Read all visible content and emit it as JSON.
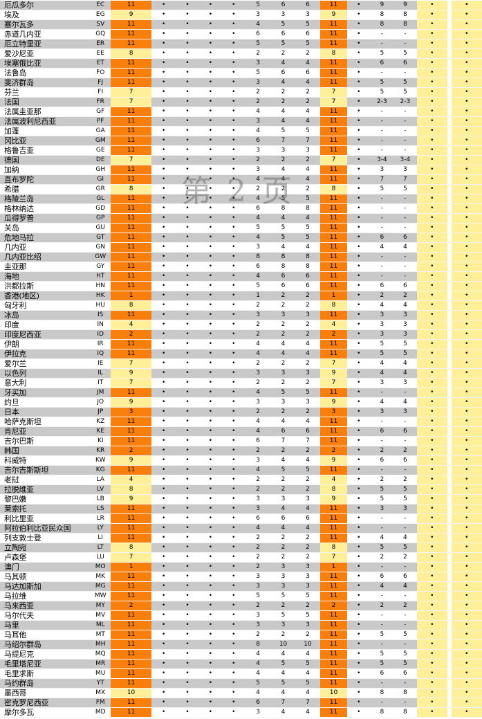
{
  "watermark": "第 2 页",
  "colors": {
    "row_gray": "#c9c9c9",
    "row_white": "#ffffff",
    "highlight_yellow": "#ffef99",
    "highlight_orange": "#f97f0d"
  },
  "marks": {
    "bullet": "•",
    "dash": "-"
  },
  "rows": [
    [
      "厄瓜多尔",
      "EC",
      "11",
      "•",
      "•",
      "•",
      "•",
      "5",
      "6",
      "6",
      "11",
      "•",
      "9",
      "9",
      "•",
      "•"
    ],
    [
      "埃及",
      "EG",
      "9",
      "•",
      "•",
      "•",
      "•",
      "3",
      "3",
      "3",
      "9",
      "•",
      "8",
      "8",
      "•",
      "•"
    ],
    [
      "塞尔瓦多",
      "SV",
      "11",
      "•",
      "•",
      "•",
      "•",
      "4",
      "5",
      "5",
      "11",
      "•",
      "8",
      "8",
      "•",
      "•"
    ],
    [
      "赤道几内亚",
      "GQ",
      "11",
      "•",
      "•",
      "•",
      "•",
      "6",
      "6",
      "6",
      "11",
      "•",
      "-",
      "-",
      "•",
      "•"
    ],
    [
      "厄立特里亚",
      "ER",
      "11",
      "•",
      "•",
      "•",
      "•",
      "5",
      "5",
      "5",
      "11",
      "•",
      "-",
      "-",
      "•",
      "•"
    ],
    [
      "爱沙尼亚",
      "EE",
      "8",
      "•",
      "•",
      "•",
      "•",
      "2",
      "2",
      "2",
      "8",
      "•",
      "5",
      "5",
      "•",
      "•"
    ],
    [
      "埃塞俄比亚",
      "ET",
      "11",
      "•",
      "•",
      "•",
      "•",
      "3",
      "4",
      "4",
      "11",
      "•",
      "6",
      "6",
      "•",
      "•"
    ],
    [
      "法鲁岛",
      "FO",
      "11",
      "•",
      "•",
      "•",
      "•",
      "5",
      "6",
      "6",
      "11",
      "•",
      "-",
      "-",
      "•",
      "•"
    ],
    [
      "斐济群岛",
      "FJ",
      "11",
      "•",
      "•",
      "•",
      "•",
      "3",
      "4",
      "4",
      "11",
      "•",
      "5",
      "5",
      "•",
      "•"
    ],
    [
      "芬兰",
      "FI",
      "7",
      "•",
      "•",
      "•",
      "•",
      "2",
      "2",
      "2",
      "7",
      "•",
      "5",
      "5",
      "•",
      "•"
    ],
    [
      "法国",
      "FR",
      "7",
      "•",
      "•",
      "•",
      "•",
      "2",
      "2",
      "2",
      "7",
      "•",
      "2-3",
      "2-3",
      "•",
      "•"
    ],
    [
      "法属圭亚那",
      "GF",
      "11",
      "•",
      "•",
      "•",
      "•",
      "4",
      "4",
      "4",
      "11",
      "•",
      "-",
      "-",
      "•",
      "•"
    ],
    [
      "法属波利尼西亚",
      "PF",
      "11",
      "•",
      "•",
      "•",
      "•",
      "3",
      "4",
      "4",
      "11",
      "•",
      "-",
      "-",
      "•",
      "•"
    ],
    [
      "加蓬",
      "GA",
      "11",
      "•",
      "•",
      "•",
      "•",
      "4",
      "5",
      "5",
      "11",
      "•",
      "-",
      "-",
      "•",
      "•"
    ],
    [
      "冈比亚",
      "GM",
      "11",
      "•",
      "•",
      "•",
      "•",
      "6",
      "7",
      "7",
      "11",
      "•",
      "-",
      "-",
      "•",
      "•"
    ],
    [
      "格鲁吉亚",
      "GE",
      "11",
      "•",
      "•",
      "•",
      "•",
      "3",
      "3",
      "3",
      "11",
      "•",
      "-",
      "-",
      "•",
      "•"
    ],
    [
      "德国",
      "DE",
      "7",
      "•",
      "•",
      "•",
      "•",
      "2",
      "2",
      "2",
      "7",
      "•",
      "3-4",
      "3-4",
      "•",
      "•"
    ],
    [
      "加纳",
      "GH",
      "11",
      "•",
      "•",
      "•",
      "•",
      "3",
      "4",
      "4",
      "11",
      "•",
      "3",
      "3",
      "•",
      "•"
    ],
    [
      "直布罗陀",
      "GI",
      "11",
      "•",
      "•",
      "•",
      "•",
      "4",
      "4",
      "4",
      "11",
      "•",
      "7",
      "7",
      "•",
      "•"
    ],
    [
      "希腊",
      "GR",
      "8",
      "•",
      "•",
      "•",
      "•",
      "2",
      "2",
      "2",
      "8",
      "•",
      "5",
      "5",
      "•",
      "•"
    ],
    [
      "格陵兰岛",
      "GL",
      "11",
      "•",
      "•",
      "•",
      "•",
      "4",
      "5",
      "5",
      "11",
      "•",
      "-",
      "-",
      "•",
      "•"
    ],
    [
      "格林纳达",
      "GD",
      "11",
      "•",
      "•",
      "•",
      "•",
      "6",
      "8",
      "8",
      "11",
      "•",
      "-",
      "-",
      "•",
      "•"
    ],
    [
      "瓜得罗普",
      "GP",
      "11",
      "•",
      "•",
      "•",
      "•",
      "4",
      "4",
      "4",
      "11",
      "•",
      "-",
      "-",
      "•",
      "•"
    ],
    [
      "关岛",
      "GU",
      "11",
      "•",
      "•",
      "•",
      "•",
      "5",
      "5",
      "5",
      "11",
      "•",
      "-",
      "-",
      "•",
      "•"
    ],
    [
      "危地马拉",
      "GT",
      "11",
      "•",
      "•",
      "•",
      "•",
      "4",
      "5",
      "5",
      "11",
      "•",
      "6",
      "6",
      "•",
      "•"
    ],
    [
      "几内亚",
      "GN",
      "11",
      "•",
      "•",
      "•",
      "•",
      "3",
      "4",
      "4",
      "11",
      "•",
      "4",
      "4",
      "•",
      "•"
    ],
    [
      "几内亚比绍",
      "GW",
      "11",
      "•",
      "•",
      "•",
      "•",
      "8",
      "8",
      "8",
      "11",
      "•",
      "-",
      "-",
      "•",
      "•"
    ],
    [
      "圭亚那",
      "GY",
      "11",
      "•",
      "•",
      "•",
      "•",
      "6",
      "8",
      "8",
      "11",
      "•",
      "-",
      "-",
      "•",
      "•"
    ],
    [
      "海地",
      "HT",
      "11",
      "•",
      "•",
      "•",
      "•",
      "4",
      "6",
      "6",
      "11",
      "•",
      "-",
      "-",
      "•",
      "•"
    ],
    [
      "洪都拉斯",
      "HN",
      "11",
      "•",
      "•",
      "•",
      "•",
      "5",
      "6",
      "6",
      "11",
      "•",
      "6",
      "6",
      "•",
      "•"
    ],
    [
      "香港(地区)",
      "HK",
      "1",
      "•",
      "•",
      "•",
      "•",
      "1",
      "2",
      "2",
      "1",
      "•",
      "2",
      "2",
      "•",
      "•"
    ],
    [
      "匈牙利",
      "HU",
      "8",
      "•",
      "•",
      "•",
      "•",
      "2",
      "2",
      "2",
      "8",
      "•",
      "4",
      "4",
      "•",
      "•"
    ],
    [
      "冰岛",
      "IS",
      "11",
      "•",
      "•",
      "•",
      "•",
      "3",
      "3",
      "3",
      "11",
      "•",
      "3",
      "3",
      "•",
      "•"
    ],
    [
      "印度",
      "IN",
      "4",
      "•",
      "•",
      "•",
      "•",
      "2",
      "2",
      "2",
      "4",
      "•",
      "3",
      "3",
      "•",
      "•"
    ],
    [
      "印度尼西亚",
      "ID",
      "2",
      "•",
      "•",
      "•",
      "•",
      "2",
      "2",
      "2",
      "2",
      "•",
      "3",
      "3",
      "•",
      "•"
    ],
    [
      "伊朗",
      "IR",
      "11",
      "•",
      "•",
      "•",
      "•",
      "4",
      "4",
      "4",
      "11",
      "•",
      "5",
      "5",
      "•",
      "•"
    ],
    [
      "伊拉克",
      "IQ",
      "11",
      "•",
      "•",
      "•",
      "•",
      "4",
      "4",
      "4",
      "11",
      "•",
      "5",
      "5",
      "•",
      "•"
    ],
    [
      "爱尔兰",
      "IE",
      "7",
      "•",
      "•",
      "•",
      "•",
      "2",
      "2",
      "2",
      "7",
      "•",
      "4",
      "4",
      "•",
      "•"
    ],
    [
      "以色列",
      "IL",
      "9",
      "•",
      "•",
      "•",
      "•",
      "3",
      "3",
      "3",
      "9",
      "•",
      "4",
      "4",
      "•",
      "•"
    ],
    [
      "意大利",
      "IT",
      "7",
      "•",
      "•",
      "•",
      "•",
      "2",
      "2",
      "2",
      "7",
      "•",
      "3",
      "3",
      "•",
      "•"
    ],
    [
      "牙买加",
      "JM",
      "11",
      "•",
      "•",
      "•",
      "•",
      "4",
      "5",
      "5",
      "11",
      "•",
      "-",
      "-",
      "•",
      "•"
    ],
    [
      "约旦",
      "JO",
      "9",
      "•",
      "•",
      "•",
      "•",
      "3",
      "3",
      "3",
      "9",
      "•",
      "4",
      "4",
      "•",
      "•"
    ],
    [
      "日本",
      "JP",
      "3",
      "•",
      "•",
      "•",
      "•",
      "2",
      "2",
      "2",
      "3",
      "•",
      "3",
      "3",
      "•",
      "•"
    ],
    [
      "哈萨克斯坦",
      "KZ",
      "11",
      "•",
      "•",
      "•",
      "•",
      "4",
      "4",
      "4",
      "11",
      "•",
      "-",
      "-",
      "•",
      "•"
    ],
    [
      "肯尼亚",
      "KE",
      "11",
      "•",
      "•",
      "•",
      "•",
      "4",
      "6",
      "6",
      "11",
      "•",
      "6",
      "6",
      "•",
      "•"
    ],
    [
      "吉尔巴斯",
      "KI",
      "11",
      "•",
      "•",
      "•",
      "•",
      "6",
      "7",
      "7",
      "11",
      "•",
      "-",
      "-",
      "•",
      "•"
    ],
    [
      "韩国",
      "KR",
      "2",
      "•",
      "•",
      "•",
      "•",
      "2",
      "2",
      "2",
      "2",
      "•",
      "2",
      "2",
      "•",
      "•"
    ],
    [
      "科威特",
      "KW",
      "9",
      "•",
      "•",
      "•",
      "•",
      "3",
      "4",
      "4",
      "9",
      "•",
      "6",
      "6",
      "•",
      "•"
    ],
    [
      "吉尔吉斯斯坦",
      "KG",
      "11",
      "•",
      "•",
      "•",
      "•",
      "4",
      "5",
      "5",
      "11",
      "•",
      "-",
      "-",
      "•",
      "•"
    ],
    [
      "老挝",
      "LA",
      "4",
      "•",
      "•",
      "•",
      "•",
      "2",
      "2",
      "2",
      "4",
      "•",
      "2",
      "2",
      "•",
      "•"
    ],
    [
      "拉脱维亚",
      "LV",
      "8",
      "•",
      "•",
      "•",
      "•",
      "2",
      "2",
      "2",
      "8",
      "•",
      "5",
      "5",
      "•",
      "•"
    ],
    [
      "黎巴嫩",
      "LB",
      "9",
      "•",
      "•",
      "•",
      "•",
      "3",
      "3",
      "3",
      "9",
      "•",
      "5",
      "5",
      "•",
      "•"
    ],
    [
      "莱索托",
      "LS",
      "11",
      "•",
      "•",
      "•",
      "•",
      "3",
      "4",
      "4",
      "11",
      "•",
      "3",
      "3",
      "•",
      "•"
    ],
    [
      "利比里亚",
      "LR",
      "11",
      "•",
      "•",
      "•",
      "•",
      "6",
      "6",
      "6",
      "11",
      "•",
      "-",
      "-",
      "•",
      "•"
    ],
    [
      "阿拉伯利比亚民众国",
      "LY",
      "11",
      "•",
      "•",
      "•",
      "•",
      "4",
      "4",
      "4",
      "11",
      "•",
      "-",
      "-",
      "•",
      "•"
    ],
    [
      "列支敦士登",
      "LI",
      "11",
      "•",
      "•",
      "•",
      "•",
      "2",
      "2",
      "2",
      "11",
      "•",
      "4",
      "4",
      "•",
      "•"
    ],
    [
      "立陶宛",
      "LT",
      "8",
      "•",
      "•",
      "•",
      "•",
      "2",
      "2",
      "2",
      "8",
      "•",
      "5",
      "5",
      "•",
      "•"
    ],
    [
      "卢森堡",
      "LU",
      "7",
      "•",
      "•",
      "•",
      "•",
      "2",
      "2",
      "2",
      "7",
      "•",
      "2",
      "2",
      "•",
      "•"
    ],
    [
      "澳门",
      "MO",
      "1",
      "•",
      "•",
      "•",
      "•",
      "2",
      "3",
      "3",
      "1",
      "•",
      "-",
      "-",
      "•",
      "•"
    ],
    [
      "马其顿",
      "MK",
      "11",
      "•",
      "•",
      "•",
      "•",
      "3",
      "3",
      "3",
      "11",
      "•",
      "6",
      "6",
      "•",
      "•"
    ],
    [
      "马达加斯加",
      "MG",
      "11",
      "•",
      "•",
      "•",
      "•",
      "3",
      "3",
      "3",
      "11",
      "•",
      "4",
      "4",
      "•",
      "•"
    ],
    [
      "马拉维",
      "MW",
      "11",
      "•",
      "•",
      "•",
      "•",
      "5",
      "5",
      "5",
      "11",
      "•",
      "-",
      "-",
      "•",
      "•"
    ],
    [
      "马来西亚",
      "MY",
      "2",
      "•",
      "•",
      "•",
      "•",
      "2",
      "2",
      "2",
      "2",
      "•",
      "2",
      "2",
      "•",
      "•"
    ],
    [
      "马尔代夫",
      "MV",
      "11",
      "•",
      "•",
      "•",
      "•",
      "3",
      "5",
      "5",
      "11",
      "•",
      "-",
      "-",
      "•",
      "•"
    ],
    [
      "马里",
      "ML",
      "11",
      "•",
      "•",
      "•",
      "•",
      "3",
      "3",
      "3",
      "11",
      "•",
      "-",
      "-",
      "•",
      "•"
    ],
    [
      "马耳他",
      "MT",
      "11",
      "•",
      "•",
      "•",
      "•",
      "2",
      "2",
      "2",
      "11",
      "•",
      "5",
      "5",
      "•",
      "•"
    ],
    [
      "马绍尔群岛",
      "MH",
      "11",
      "•",
      "•",
      "•",
      "•",
      "8",
      "10",
      "10",
      "11",
      "•",
      "-",
      "-",
      "•",
      "•"
    ],
    [
      "马提尼克",
      "MQ",
      "11",
      "•",
      "•",
      "•",
      "•",
      "4",
      "4",
      "4",
      "11",
      "•",
      "5",
      "5",
      "•",
      "•"
    ],
    [
      "毛里塔尼亚",
      "MR",
      "11",
      "•",
      "•",
      "•",
      "•",
      "4",
      "5",
      "5",
      "11",
      "•",
      "5",
      "5",
      "•",
      "•"
    ],
    [
      "毛里求斯",
      "MU",
      "11",
      "•",
      "•",
      "•",
      "•",
      "4",
      "4",
      "4",
      "11",
      "•",
      "6",
      "6",
      "•",
      "•"
    ],
    [
      "马约群岛",
      "YT",
      "11",
      "•",
      "•",
      "•",
      "•",
      "5",
      "5",
      "5",
      "11",
      "•",
      "-",
      "-",
      "•",
      "•"
    ],
    [
      "墨西哥",
      "MX",
      "10",
      "•",
      "•",
      "•",
      "•",
      "4",
      "4",
      "4",
      "10",
      "•",
      "8",
      "8",
      "•",
      "•"
    ],
    [
      "密克罗尼西亚",
      "FM",
      "11",
      "•",
      "•",
      "•",
      "•",
      "6",
      "7",
      "7",
      "11",
      "•",
      "-",
      "-",
      "•",
      "•"
    ],
    [
      "摩尔多瓦",
      "MD",
      "11",
      "•",
      "•",
      "•",
      "•",
      "3",
      "4",
      "4",
      "11",
      "•",
      "8",
      "8",
      "•",
      "•"
    ]
  ]
}
